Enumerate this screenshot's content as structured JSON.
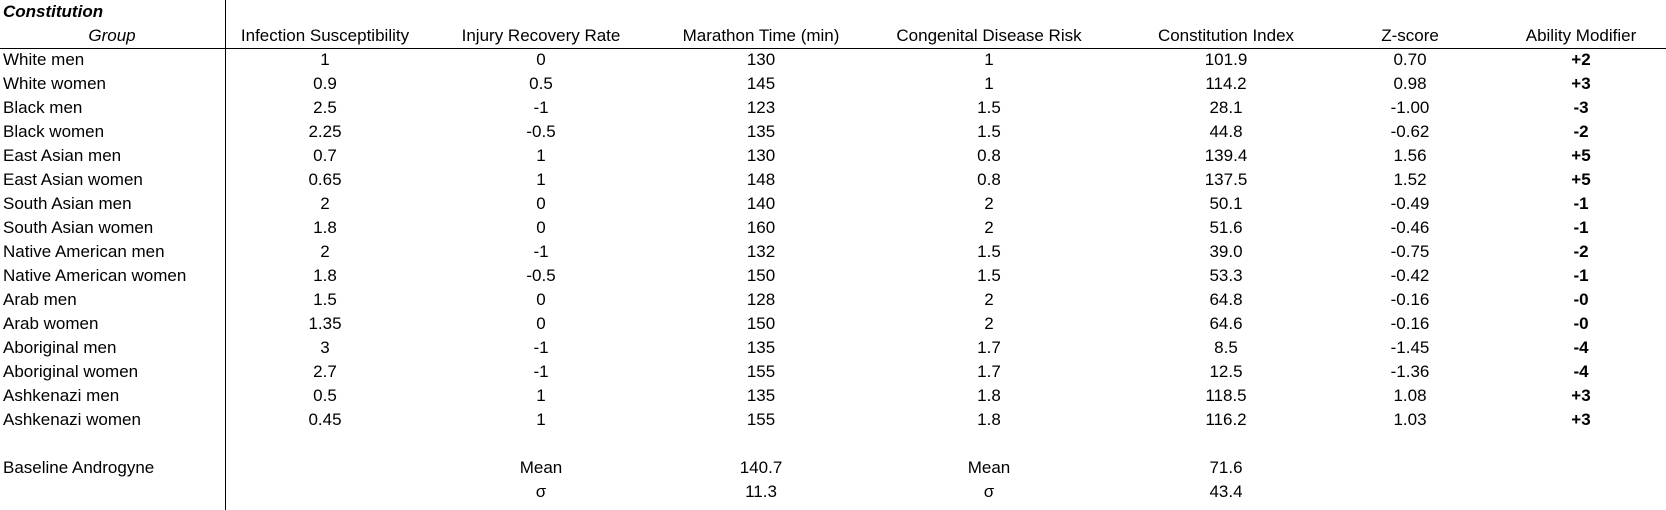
{
  "title": "Constitution",
  "header": [
    "Group",
    "Infection Susceptibility",
    "Injury Recovery Rate",
    "Marathon Time (min)",
    "Congenital Disease Risk",
    "Constitution Index",
    "Z-score",
    "Ability Modifier"
  ],
  "rows": [
    [
      "White men",
      "1",
      "0",
      "130",
      "1",
      "101.9",
      "0.70",
      "+2"
    ],
    [
      "White women",
      "0.9",
      "0.5",
      "145",
      "1",
      "114.2",
      "0.98",
      "+3"
    ],
    [
      "Black men",
      "2.5",
      "-1",
      "123",
      "1.5",
      "28.1",
      "-1.00",
      "-3"
    ],
    [
      "Black women",
      "2.25",
      "-0.5",
      "135",
      "1.5",
      "44.8",
      "-0.62",
      "-2"
    ],
    [
      "East Asian men",
      "0.7",
      "1",
      "130",
      "0.8",
      "139.4",
      "1.56",
      "+5"
    ],
    [
      "East Asian women",
      "0.65",
      "1",
      "148",
      "0.8",
      "137.5",
      "1.52",
      "+5"
    ],
    [
      "South Asian men",
      "2",
      "0",
      "140",
      "2",
      "50.1",
      "-0.49",
      "-1"
    ],
    [
      "South Asian women",
      "1.8",
      "0",
      "160",
      "2",
      "51.6",
      "-0.46",
      "-1"
    ],
    [
      "Native American men",
      "2",
      "-1",
      "132",
      "1.5",
      "39.0",
      "-0.75",
      "-2"
    ],
    [
      "Native American women",
      "1.8",
      "-0.5",
      "150",
      "1.5",
      "53.3",
      "-0.42",
      "-1"
    ],
    [
      "Arab men",
      "1.5",
      "0",
      "128",
      "2",
      "64.8",
      "-0.16",
      "-0"
    ],
    [
      "Arab women",
      "1.35",
      "0",
      "150",
      "2",
      "64.6",
      "-0.16",
      "-0"
    ],
    [
      "Aboriginal men",
      "3",
      "-1",
      "135",
      "1.7",
      "8.5",
      "-1.45",
      "-4"
    ],
    [
      "Aboriginal women",
      "2.7",
      "-1",
      "155",
      "1.7",
      "12.5",
      "-1.36",
      "-4"
    ],
    [
      "Ashkenazi men",
      "0.5",
      "1",
      "135",
      "1.8",
      "118.5",
      "1.08",
      "+3"
    ],
    [
      "Ashkenazi women",
      "0.45",
      "1",
      "155",
      "1.8",
      "116.2",
      "1.03",
      "+3"
    ]
  ],
  "footer": [
    [
      "Baseline Androgyne",
      null,
      "Mean",
      "140.7",
      "Mean",
      "71.6",
      null,
      null
    ],
    [
      null,
      null,
      "σ",
      "11.3",
      "σ",
      "43.4",
      null,
      null
    ]
  ]
}
